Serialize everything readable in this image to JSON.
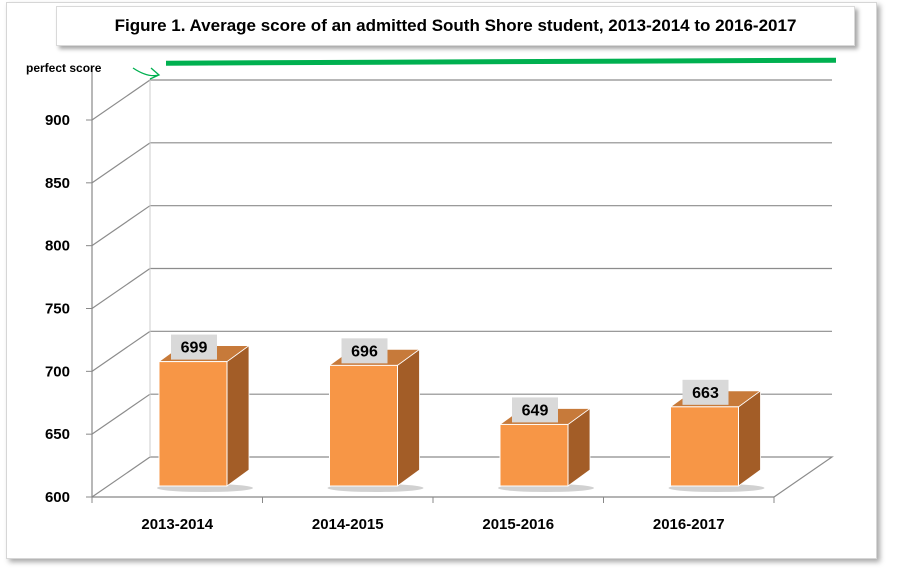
{
  "chart_data": {
    "type": "bar",
    "title": "Figure 1. Average score of an admitted South Shore student, 2013-2014 to 2016-2017",
    "categories": [
      "2013-2014",
      "2014-2015",
      "2015-2016",
      "2016-2017"
    ],
    "values": [
      699,
      696,
      649,
      663
    ],
    "ylim": [
      600,
      900
    ],
    "yticks": [
      600,
      650,
      700,
      750,
      800,
      850,
      900
    ],
    "xlabel": "",
    "ylabel": "",
    "grid": true,
    "legend": "none",
    "annotation": {
      "label": "perfect score",
      "value": 946
    },
    "colors": {
      "bar_front": "#F79646",
      "bar_side": "#A35D27",
      "bar_top": "#C77A3A",
      "label_bg": "#D9D9D9",
      "reference_line": "#00B050",
      "grid": "#8C8C8C"
    }
  }
}
